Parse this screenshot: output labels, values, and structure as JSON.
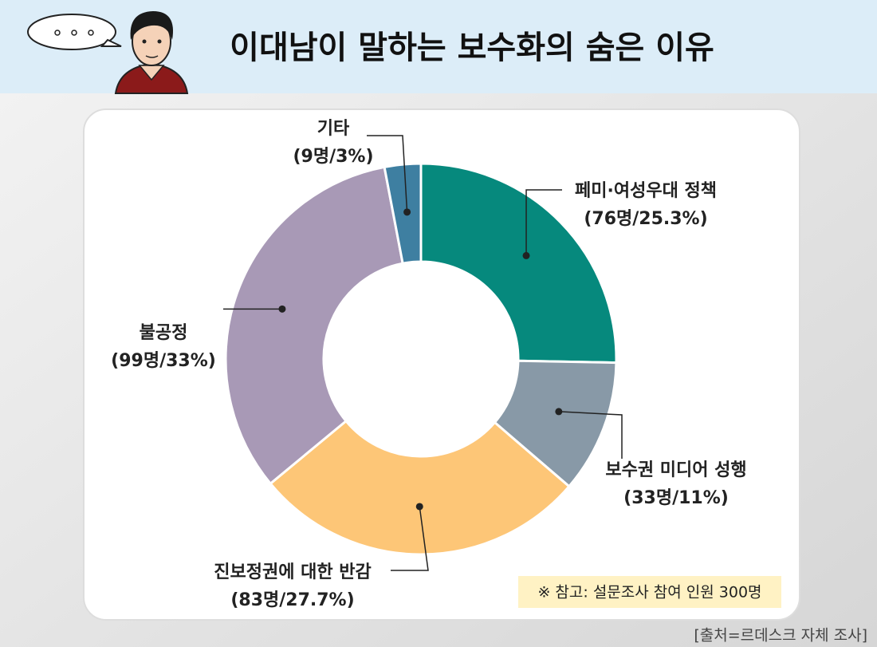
{
  "chart_data": {
    "type": "donut",
    "title": "이대남이 말하는 보수화의 숨은 이유",
    "categories": [
      "페미·여성우대 정책",
      "보수권 미디어 성행",
      "진보정권에 대한 반감",
      "불공정",
      "기타"
    ],
    "values": [
      25.3,
      11,
      27.7,
      33,
      3
    ],
    "value_labels": [
      "(76명/25.3%)",
      "(33명/11%)",
      "(83명/27.7%)",
      "(99명/33%)",
      "(9명/3%)"
    ],
    "colors": [
      "#06897d",
      "#8899a7",
      "#fdc677",
      "#a899b6",
      "#3e7fa1"
    ],
    "note": "※ 참고: 설문조사 참여 인원 300명",
    "source": "[출처=르데스크 자체 조사]"
  }
}
